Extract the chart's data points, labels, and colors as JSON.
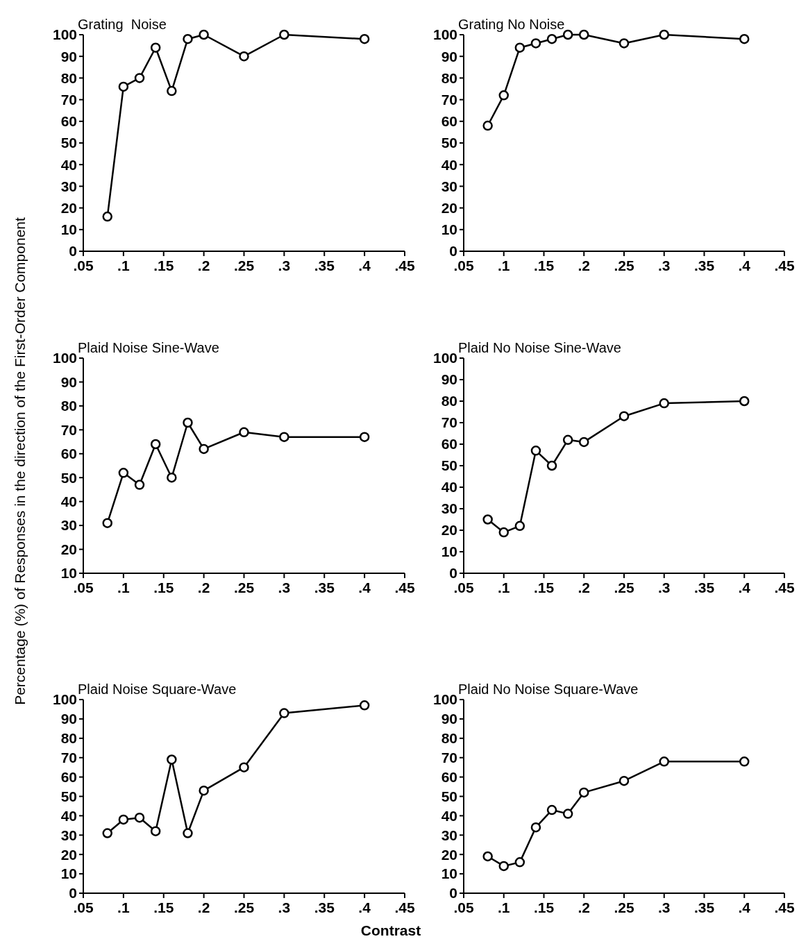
{
  "chart_data": [
    {
      "type": "line",
      "title": "Grating  Noise",
      "x": [
        0.08,
        0.1,
        0.12,
        0.14,
        0.16,
        0.18,
        0.2,
        0.25,
        0.3,
        0.4
      ],
      "series": [
        {
          "color": "#000000",
          "values": [
            16,
            76,
            80,
            94,
            74,
            98,
            100,
            90,
            100,
            98
          ]
        }
      ],
      "xlim": [
        0.05,
        0.45
      ],
      "xticks": [
        {
          "value": 0.05,
          "label": ".05"
        },
        {
          "value": 0.1,
          "label": ".1"
        },
        {
          "value": 0.15,
          "label": ".15"
        },
        {
          "value": 0.2,
          "label": ".2"
        },
        {
          "value": 0.25,
          "label": ".25"
        },
        {
          "value": 0.3,
          "label": ".3"
        },
        {
          "value": 0.35,
          "label": ".35"
        },
        {
          "value": 0.4,
          "label": ".4"
        },
        {
          "value": 0.45,
          "label": ".45"
        }
      ],
      "ylim": [
        0,
        100
      ],
      "yticks": [
        0,
        10,
        20,
        30,
        40,
        50,
        60,
        70,
        80,
        90,
        100
      ],
      "marker": "circle",
      "line_style": "solid",
      "grid": false
    },
    {
      "type": "line",
      "title": "Grating No Noise",
      "x": [
        0.08,
        0.1,
        0.12,
        0.14,
        0.16,
        0.18,
        0.2,
        0.25,
        0.3,
        0.4
      ],
      "series": [
        {
          "color": "#000000",
          "values": [
            58,
            72,
            94,
            96,
            98,
            100,
            100,
            96,
            100,
            98
          ]
        }
      ],
      "xlim": [
        0.05,
        0.45
      ],
      "xticks": [
        {
          "value": 0.05,
          "label": ".05"
        },
        {
          "value": 0.1,
          "label": ".1"
        },
        {
          "value": 0.15,
          "label": ".15"
        },
        {
          "value": 0.2,
          "label": ".2"
        },
        {
          "value": 0.25,
          "label": ".25"
        },
        {
          "value": 0.3,
          "label": ".3"
        },
        {
          "value": 0.35,
          "label": ".35"
        },
        {
          "value": 0.4,
          "label": ".4"
        },
        {
          "value": 0.45,
          "label": ".45"
        }
      ],
      "ylim": [
        0,
        100
      ],
      "yticks": [
        0,
        10,
        20,
        30,
        40,
        50,
        60,
        70,
        80,
        90,
        100
      ],
      "marker": "circle",
      "line_style": "solid",
      "grid": false
    },
    {
      "type": "line",
      "title": "Plaid Noise Sine-Wave",
      "ylabel": "Percentage (%) of Responses in the direction of the First-Order Component",
      "x": [
        0.08,
        0.1,
        0.12,
        0.14,
        0.16,
        0.18,
        0.2,
        0.25,
        0.3,
        0.4
      ],
      "series": [
        {
          "color": "#000000",
          "values": [
            31,
            52,
            47,
            64,
            50,
            73,
            62,
            69,
            67,
            67
          ]
        }
      ],
      "xlim": [
        0.05,
        0.45
      ],
      "xticks": [
        {
          "value": 0.05,
          "label": ".05"
        },
        {
          "value": 0.1,
          "label": ".1"
        },
        {
          "value": 0.15,
          "label": ".15"
        },
        {
          "value": 0.2,
          "label": ".2"
        },
        {
          "value": 0.25,
          "label": ".25"
        },
        {
          "value": 0.3,
          "label": ".3"
        },
        {
          "value": 0.35,
          "label": ".35"
        },
        {
          "value": 0.4,
          "label": ".4"
        },
        {
          "value": 0.45,
          "label": ".45"
        }
      ],
      "ylim": [
        10,
        100
      ],
      "yticks": [
        10,
        20,
        30,
        40,
        50,
        60,
        70,
        80,
        90,
        100
      ],
      "marker": "circle",
      "line_style": "solid",
      "grid": false
    },
    {
      "type": "line",
      "title": "Plaid No Noise Sine-Wave",
      "x": [
        0.08,
        0.1,
        0.12,
        0.14,
        0.16,
        0.18,
        0.2,
        0.25,
        0.3,
        0.4
      ],
      "series": [
        {
          "color": "#000000",
          "values": [
            25,
            19,
            22,
            57,
            50,
            62,
            61,
            73,
            79,
            80
          ]
        }
      ],
      "xlim": [
        0.05,
        0.45
      ],
      "xticks": [
        {
          "value": 0.05,
          "label": ".05"
        },
        {
          "value": 0.1,
          "label": ".1"
        },
        {
          "value": 0.15,
          "label": ".15"
        },
        {
          "value": 0.2,
          "label": ".2"
        },
        {
          "value": 0.25,
          "label": ".25"
        },
        {
          "value": 0.3,
          "label": ".3"
        },
        {
          "value": 0.35,
          "label": ".35"
        },
        {
          "value": 0.4,
          "label": ".4"
        },
        {
          "value": 0.45,
          "label": ".45"
        }
      ],
      "ylim": [
        0,
        100
      ],
      "yticks": [
        0,
        10,
        20,
        30,
        40,
        50,
        60,
        70,
        80,
        90,
        100
      ],
      "marker": "circle",
      "line_style": "solid",
      "grid": false
    },
    {
      "type": "line",
      "title": "Plaid Noise Square-Wave",
      "xlabel": "Contrast",
      "x": [
        0.08,
        0.1,
        0.12,
        0.14,
        0.16,
        0.18,
        0.2,
        0.25,
        0.3,
        0.4
      ],
      "series": [
        {
          "color": "#000000",
          "values": [
            31,
            38,
            39,
            32,
            69,
            31,
            53,
            65,
            93,
            97
          ]
        }
      ],
      "xlim": [
        0.05,
        0.45
      ],
      "xticks": [
        {
          "value": 0.05,
          "label": ".05"
        },
        {
          "value": 0.1,
          "label": ".1"
        },
        {
          "value": 0.15,
          "label": ".15"
        },
        {
          "value": 0.2,
          "label": ".2"
        },
        {
          "value": 0.25,
          "label": ".25"
        },
        {
          "value": 0.3,
          "label": ".3"
        },
        {
          "value": 0.35,
          "label": ".35"
        },
        {
          "value": 0.4,
          "label": ".4"
        },
        {
          "value": 0.45,
          "label": ".45"
        }
      ],
      "ylim": [
        0,
        100
      ],
      "yticks": [
        0,
        10,
        20,
        30,
        40,
        50,
        60,
        70,
        80,
        90,
        100
      ],
      "marker": "circle",
      "line_style": "solid",
      "grid": false
    },
    {
      "type": "line",
      "title": "Plaid No Noise Square-Wave",
      "x": [
        0.08,
        0.1,
        0.12,
        0.14,
        0.16,
        0.18,
        0.2,
        0.25,
        0.3,
        0.4
      ],
      "series": [
        {
          "color": "#000000",
          "values": [
            19,
            14,
            16,
            34,
            43,
            41,
            52,
            58,
            68,
            68
          ]
        }
      ],
      "xlim": [
        0.05,
        0.45
      ],
      "xticks": [
        {
          "value": 0.05,
          "label": ".05"
        },
        {
          "value": 0.1,
          "label": ".1"
        },
        {
          "value": 0.15,
          "label": ".15"
        },
        {
          "value": 0.2,
          "label": ".2"
        },
        {
          "value": 0.25,
          "label": ".25"
        },
        {
          "value": 0.3,
          "label": ".3"
        },
        {
          "value": 0.35,
          "label": ".35"
        },
        {
          "value": 0.4,
          "label": ".4"
        },
        {
          "value": 0.45,
          "label": ".45"
        }
      ],
      "ylim": [
        0,
        100
      ],
      "yticks": [
        0,
        10,
        20,
        30,
        40,
        50,
        60,
        70,
        80,
        90,
        100
      ],
      "marker": "circle",
      "line_style": "solid",
      "grid": false
    }
  ]
}
